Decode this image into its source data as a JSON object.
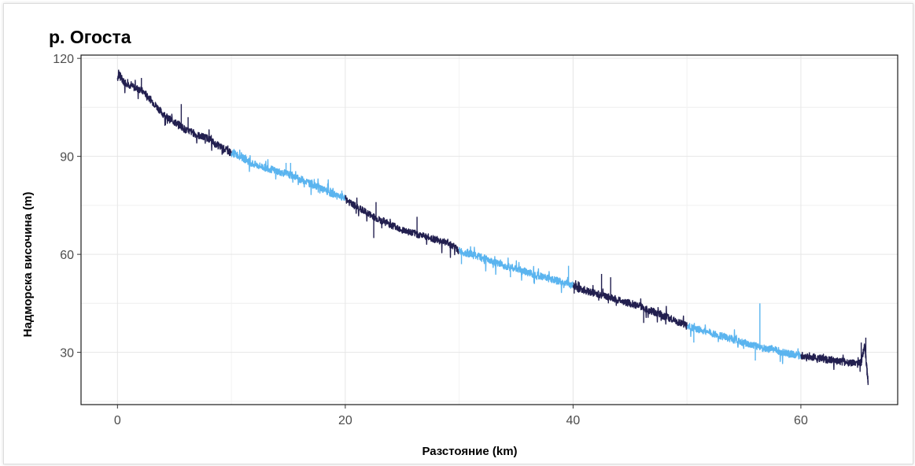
{
  "chart_data": {
    "type": "line",
    "title": "р. Огоста",
    "xlabel": "Разстояние (km)",
    "ylabel": "Надморска височина (m)",
    "xlim": [
      -3.2,
      68.5
    ],
    "ylim": [
      14,
      121
    ],
    "xticks": [
      0,
      20,
      40,
      60
    ],
    "yticks": [
      30,
      60,
      90,
      120
    ],
    "grid": true,
    "legend": "none",
    "colors": {
      "dark": "#221f4f",
      "light": "#5ab4ef"
    },
    "series": [
      {
        "color": "dark",
        "x": [
          0,
          0.2,
          0.5,
          1,
          1.5,
          2,
          2.5,
          3,
          3.5,
          4,
          4.5,
          5,
          5.5,
          6,
          6.5,
          7,
          7.5,
          8,
          8.5,
          9,
          9.5,
          10
        ],
        "y": [
          114,
          115,
          113,
          112,
          111,
          110.5,
          109,
          107,
          105,
          103,
          101.5,
          100.5,
          99.5,
          98,
          97.5,
          96.5,
          96,
          95.5,
          94,
          93,
          92,
          91
        ]
      },
      {
        "color": "light",
        "x": [
          10,
          10.5,
          11,
          11.5,
          12,
          12.5,
          13,
          13.5,
          14,
          14.5,
          15,
          15.5,
          16,
          16.5,
          17,
          17.5,
          18,
          18.5,
          19,
          19.5,
          20
        ],
        "y": [
          91,
          90.5,
          89.5,
          88.5,
          87.5,
          87,
          86.5,
          86,
          85.5,
          85,
          84.5,
          84,
          83,
          82.5,
          81.5,
          81,
          80,
          79,
          78.5,
          78,
          77
        ]
      },
      {
        "color": "dark",
        "x": [
          20,
          20.5,
          21,
          21.5,
          22,
          22.5,
          23,
          23.5,
          24,
          24.5,
          25,
          25.5,
          26,
          26.5,
          27,
          27.5,
          28,
          28.5,
          29,
          29.5,
          30
        ],
        "y": [
          77,
          75.5,
          74.5,
          73.5,
          72.5,
          71.5,
          70.5,
          70,
          69,
          68.5,
          67.5,
          67,
          66.5,
          66,
          65.5,
          65,
          64.5,
          64,
          63.5,
          62.5,
          61
        ]
      },
      {
        "color": "light",
        "x": [
          30,
          30.5,
          31,
          31.5,
          32,
          32.5,
          33,
          33.5,
          34,
          34.5,
          35,
          35.5,
          36,
          36.5,
          37,
          37.5,
          38,
          38.5,
          39,
          39.5,
          40
        ],
        "y": [
          61,
          60.5,
          60,
          59.5,
          59,
          58.5,
          57.5,
          57,
          56.5,
          56,
          55.5,
          55,
          54.5,
          54,
          53.5,
          53,
          52.5,
          52,
          51.5,
          51,
          50.5
        ]
      },
      {
        "color": "dark",
        "x": [
          40,
          40.5,
          41,
          41.5,
          42,
          42.5,
          43,
          43.5,
          44,
          44.5,
          45,
          45.5,
          46,
          46.5,
          47,
          47.5,
          48,
          48.5,
          49,
          49.5,
          50
        ],
        "y": [
          50.5,
          49.5,
          49,
          48.5,
          48,
          47.5,
          47,
          46.5,
          46,
          45.5,
          45,
          44.5,
          44,
          43,
          42.5,
          42,
          41,
          40.5,
          39.5,
          39,
          38
        ]
      },
      {
        "color": "light",
        "x": [
          50,
          50.5,
          51,
          51.5,
          52,
          52.5,
          53,
          53.5,
          54,
          54.5,
          55,
          55.5,
          56,
          56.5,
          57,
          57.5,
          58,
          58.5,
          59,
          59.5,
          60
        ],
        "y": [
          38,
          37.5,
          37,
          36.5,
          36,
          35.5,
          35,
          34.5,
          34,
          33.5,
          33,
          32.5,
          32,
          31.5,
          31,
          31,
          30.5,
          30,
          29.5,
          29.3,
          29
        ]
      },
      {
        "color": "dark",
        "x": [
          60,
          60.5,
          61,
          61.5,
          62,
          62.5,
          63,
          63.5,
          64,
          64.5,
          65,
          65.3,
          65.6,
          65.8,
          65.9
        ],
        "y": [
          29,
          28.8,
          28.6,
          28.3,
          28,
          27.7,
          27.5,
          27.2,
          27,
          26.7,
          26.3,
          27,
          32,
          25,
          21
        ]
      }
    ],
    "spikes": [
      {
        "x": 0.1,
        "y": 116.5
      },
      {
        "x": 1.2,
        "y": 113
      },
      {
        "x": 2.1,
        "y": 114
      },
      {
        "x": 5.6,
        "y": 106
      },
      {
        "x": 6.2,
        "y": 102
      },
      {
        "x": 14.8,
        "y": 88
      },
      {
        "x": 15.2,
        "y": 88
      },
      {
        "x": 19.7,
        "y": 79.5
      },
      {
        "x": 22.7,
        "y": 76
      },
      {
        "x": 22.5,
        "y": 65
      },
      {
        "x": 26.3,
        "y": 71.5
      },
      {
        "x": 30.2,
        "y": 57
      },
      {
        "x": 34.5,
        "y": 53
      },
      {
        "x": 39.6,
        "y": 56.5
      },
      {
        "x": 40.1,
        "y": 48
      },
      {
        "x": 42.5,
        "y": 54
      },
      {
        "x": 43.3,
        "y": 53
      },
      {
        "x": 43.1,
        "y": 45
      },
      {
        "x": 46.2,
        "y": 39
      },
      {
        "x": 50.6,
        "y": 33
      },
      {
        "x": 55.4,
        "y": 31.5
      },
      {
        "x": 56.4,
        "y": 45
      },
      {
        "x": 56.0,
        "y": 27.5
      },
      {
        "x": 65.3,
        "y": 33
      },
      {
        "x": 65.7,
        "y": 34.5
      },
      {
        "x": 65.9,
        "y": 20
      }
    ]
  }
}
